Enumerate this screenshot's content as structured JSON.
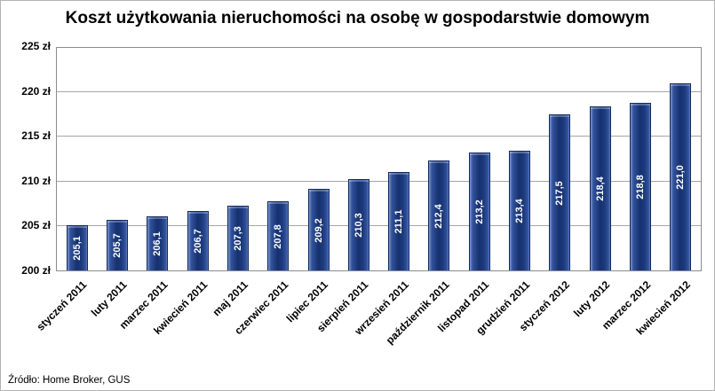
{
  "chart_data": {
    "type": "bar",
    "title": "Koszt użytkowania nieruchomości na osobę w gospodarstwie domowym",
    "categories": [
      "styczeń 2011",
      "luty 2011",
      "marzec 2011",
      "kwiecień 2011",
      "maj 2011",
      "czerwiec 2011",
      "lipiec 2011",
      "sierpień 2011",
      "wrzesień 2011",
      "październik 2011",
      "listopad 2011",
      "grudzień 2011",
      "styczeń 2012",
      "luty 2012",
      "marzec 2012",
      "kwiecień 2012"
    ],
    "values": [
      205.1,
      205.7,
      206.1,
      206.7,
      207.3,
      207.8,
      209.2,
      210.3,
      211.1,
      212.4,
      213.2,
      213.4,
      217.5,
      218.4,
      218.8,
      221.0
    ],
    "value_labels": [
      "205,1",
      "205,7",
      "206,1",
      "206,7",
      "207,3",
      "207,8",
      "209,2",
      "210,3",
      "211,1",
      "212,4",
      "213,2",
      "213,4",
      "217,5",
      "218,4",
      "218,8",
      "221,0"
    ],
    "xlabel": "",
    "ylabel": "",
    "ylim": [
      200,
      225
    ],
    "yticks": [
      {
        "value": 200,
        "label": "200 zł"
      },
      {
        "value": 205,
        "label": "205 zł"
      },
      {
        "value": 210,
        "label": "210 zł"
      },
      {
        "value": 215,
        "label": "215 zł"
      },
      {
        "value": 220,
        "label": "220 zł"
      },
      {
        "value": 225,
        "label": "225 zł"
      }
    ],
    "grid": true,
    "legend": "none",
    "bar_color": "#1b3a7d",
    "source": "Źródło: Home Broker, GUS"
  }
}
